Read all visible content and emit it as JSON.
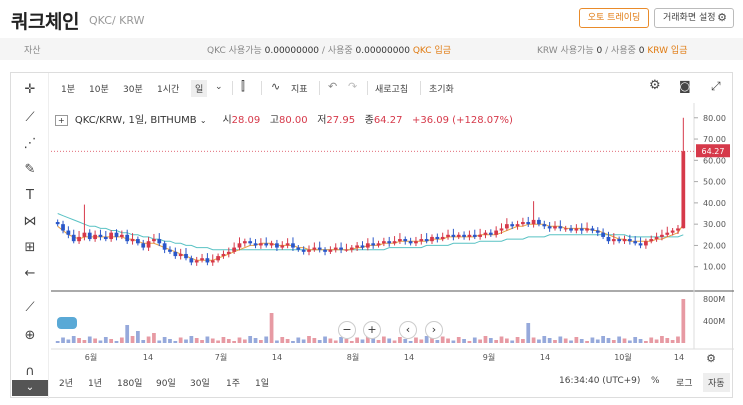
{
  "header": {
    "title": "쿼크체인",
    "pair": "QKC/ KRW",
    "auto_trading": "오토 트레이딩",
    "screen_settings": "거래화면 설정"
  },
  "assets": {
    "label": "자산",
    "qkc_avail_label": "QKC 사용가능",
    "qkc_avail": "0.00000000",
    "qkc_used_label": "/ 사용중",
    "qkc_used": "0.00000000",
    "qkc_deposit": "QKC 입금",
    "krw_avail_label": "KRW 사용가능",
    "krw_avail": "0",
    "krw_used_label": "/ 사용중",
    "krw_used": "0",
    "krw_deposit": "KRW 입금"
  },
  "toolbar": {
    "intervals": [
      "1분",
      "10분",
      "30분",
      "1시간",
      "일"
    ],
    "indicator": "지표",
    "refresh": "새로고침",
    "reset": "초기화"
  },
  "legend": {
    "symbol": "QKC/KRW, 1일, BITHUMB",
    "open_label": "시",
    "open": "28.09",
    "high_label": "고",
    "high": "80.00",
    "low_label": "저",
    "low": "27.95",
    "close_label": "종",
    "close": "64.27",
    "change": "+36.09 (+128.07%)"
  },
  "bottom": {
    "ranges": [
      "2년",
      "1년",
      "180일",
      "90일",
      "30일",
      "1주",
      "1일"
    ],
    "time": "16:34:40 (UTC+9)",
    "percent": "%",
    "log": "로그",
    "auto": "자동"
  },
  "colors": {
    "up": "#d6394a",
    "down": "#2a57c9",
    "ma_short": "#e8a040",
    "ma_long": "#59c2c4",
    "accent": "#e07a10"
  },
  "chart_data": {
    "type": "candlestick",
    "price_axis": {
      "ticks": [
        "80.00",
        "70.00",
        "60.00",
        "50.00",
        "40.00",
        "30.00",
        "20.00",
        "10.00"
      ],
      "ylim": [
        0,
        86
      ],
      "last_price": "64.27"
    },
    "volume_axis": {
      "ticks": [
        "800M",
        "400M"
      ]
    },
    "x_ticks": [
      "6월",
      "14",
      "7월",
      "14",
      "8월",
      "14",
      "9월",
      "14",
      "10월",
      "14"
    ],
    "closes": [
      30,
      27,
      25,
      22,
      24,
      26,
      23,
      25,
      24,
      23,
      26,
      24,
      25,
      22,
      23,
      21,
      19,
      22,
      23,
      21,
      18,
      17,
      15,
      16,
      14,
      12,
      13,
      14,
      12,
      13,
      15,
      16,
      17,
      19,
      21,
      22,
      21,
      20,
      21,
      20,
      21,
      19,
      20,
      21,
      19,
      18,
      17,
      18,
      19,
      18,
      17,
      18,
      19,
      18,
      18,
      19,
      20,
      19,
      21,
      20,
      21,
      22,
      21,
      22,
      23,
      22,
      21,
      22,
      23,
      22,
      24,
      23,
      24,
      25,
      24,
      25,
      24,
      25,
      24,
      25,
      26,
      25,
      27,
      28,
      30,
      29,
      30,
      31,
      30,
      32,
      30,
      29,
      28,
      29,
      28,
      28,
      27,
      28,
      27,
      28,
      27,
      26,
      24,
      22,
      23,
      22,
      23,
      22,
      21,
      20,
      22,
      23,
      24,
      25,
      26,
      27,
      28,
      64.27
    ],
    "ma_short": [
      29,
      27,
      25,
      24,
      23,
      24,
      24,
      24,
      24,
      24,
      24,
      24,
      24,
      23,
      23,
      22,
      21,
      21,
      21,
      20,
      19,
      18,
      17,
      16,
      15,
      14,
      13,
      13,
      13,
      13,
      14,
      15,
      16,
      17,
      18,
      19,
      20,
      20,
      21,
      21,
      21,
      20,
      20,
      20,
      20,
      19,
      19,
      18,
      18,
      18,
      18,
      18,
      18,
      18,
      18,
      18,
      19,
      19,
      20,
      20,
      20,
      21,
      21,
      21,
      22,
      22,
      22,
      22,
      22,
      22,
      23,
      23,
      23,
      24,
      24,
      24,
      24,
      24,
      24,
      25,
      25,
      25,
      25,
      26,
      27,
      28,
      29,
      29,
      30,
      30,
      30,
      30,
      29,
      29,
      29,
      28,
      28,
      28,
      28,
      28,
      27,
      27,
      26,
      25,
      24,
      23,
      23,
      22,
      22,
      22,
      22,
      22,
      23,
      23,
      24,
      25,
      26,
      30
    ],
    "ma_long": [
      35,
      34,
      33,
      32,
      31,
      30,
      29,
      29,
      28,
      28,
      27,
      27,
      26,
      26,
      25,
      25,
      24,
      24,
      23,
      23,
      22,
      22,
      21,
      21,
      20,
      20,
      19,
      19,
      19,
      18,
      18,
      18,
      18,
      18,
      18,
      18,
      18,
      18,
      18,
      18,
      18,
      18,
      18,
      18,
      18,
      18,
      18,
      18,
      18,
      18,
      18,
      18,
      18,
      18,
      18,
      18,
      18,
      18,
      18,
      18,
      18,
      18,
      19,
      19,
      19,
      19,
      19,
      19,
      19,
      20,
      20,
      20,
      20,
      20,
      21,
      21,
      21,
      21,
      21,
      22,
      22,
      22,
      22,
      22,
      23,
      23,
      23,
      23,
      24,
      24,
      24,
      24,
      25,
      25,
      25,
      25,
      25,
      25,
      25,
      25,
      25,
      25,
      25,
      25,
      25,
      25,
      25,
      24,
      24,
      24,
      24,
      24,
      24,
      24,
      24,
      24,
      24,
      25
    ]
  }
}
